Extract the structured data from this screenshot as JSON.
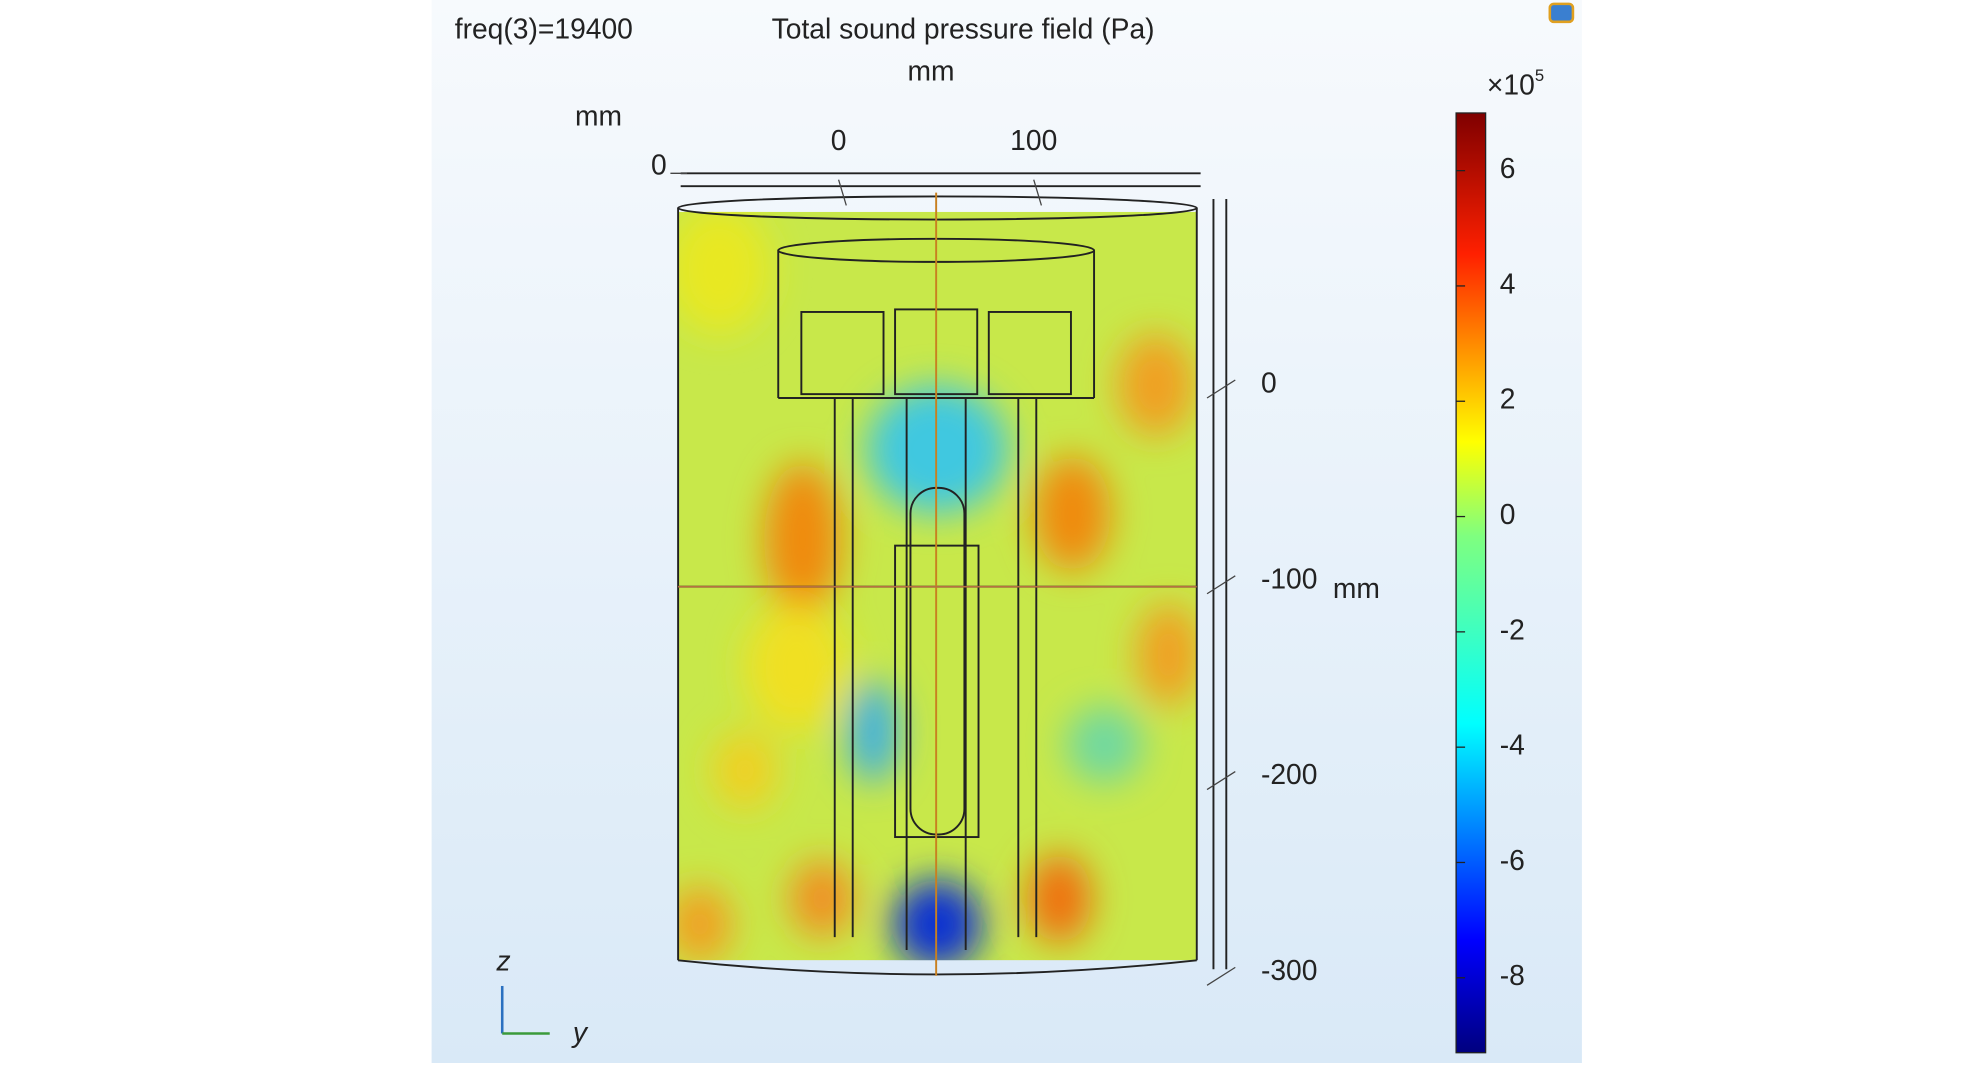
{
  "header": {
    "parameter": "freq(3)=19400",
    "title": "Total sound pressure field (Pa)"
  },
  "axes": {
    "top_unit": "mm",
    "left_unit": "mm",
    "right_unit": "mm",
    "top_ticks": [
      0,
      100
    ],
    "left_ticks": [
      0
    ],
    "right_ticks": [
      0,
      -100,
      -200,
      -300
    ]
  },
  "colorbar": {
    "multiplier": "×10",
    "exponent": "5",
    "range": [
      -9.3,
      7
    ],
    "ticks": [
      6,
      4,
      2,
      0,
      -2,
      -4,
      -6,
      -8
    ]
  },
  "triad": {
    "z": "z",
    "y": "y"
  }
}
